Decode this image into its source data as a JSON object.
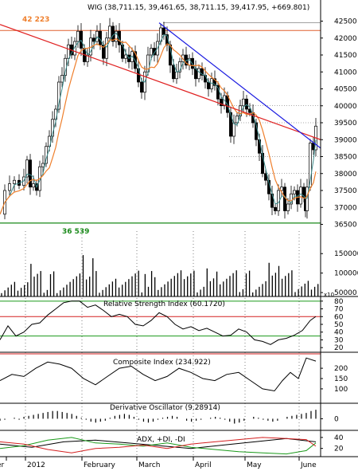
{
  "chart_data": [
    {
      "type": "candlestick",
      "title": "WIG (38,711.15, 39,461.65, 38,711.15, 39,417.95, +669.801)",
      "y_ticks": [
        36500,
        37000,
        37500,
        38000,
        38500,
        39000,
        39500,
        40000,
        40500,
        41000,
        41500,
        42000,
        42500
      ],
      "ylim": [
        36300,
        42700
      ],
      "annotations": [
        "42 223",
        "36 539"
      ],
      "reference_levels": [
        42223,
        36539,
        42450
      ],
      "close_path": [
        [
          0,
          36800
        ],
        [
          6,
          37500
        ],
        [
          12,
          37700
        ],
        [
          18,
          37800
        ],
        [
          24,
          37650
        ],
        [
          30,
          37900
        ],
        [
          34,
          38400
        ],
        [
          38,
          37600
        ],
        [
          42,
          37700
        ],
        [
          46,
          37500
        ],
        [
          50,
          38200
        ],
        [
          54,
          38300
        ],
        [
          58,
          38800
        ],
        [
          62,
          39100
        ],
        [
          66,
          39600
        ],
        [
          70,
          39900
        ],
        [
          74,
          40700
        ],
        [
          78,
          40900
        ],
        [
          82,
          41400
        ],
        [
          86,
          41800
        ],
        [
          90,
          41500
        ],
        [
          94,
          41900
        ],
        [
          98,
          42200
        ],
        [
          102,
          41700
        ],
        [
          106,
          41300
        ],
        [
          110,
          41500
        ],
        [
          114,
          42000
        ],
        [
          118,
          41900
        ],
        [
          122,
          42200
        ],
        [
          126,
          41800
        ],
        [
          130,
          41400
        ],
        [
          134,
          42000
        ],
        [
          138,
          42350
        ],
        [
          142,
          41900
        ],
        [
          146,
          42200
        ],
        [
          150,
          41800
        ],
        [
          154,
          41400
        ],
        [
          158,
          41500
        ],
        [
          162,
          41300
        ],
        [
          166,
          41600
        ],
        [
          170,
          41100
        ],
        [
          174,
          40700
        ],
        [
          178,
          40400
        ],
        [
          182,
          41000
        ],
        [
          186,
          41500
        ],
        [
          190,
          41700
        ],
        [
          194,
          41500
        ],
        [
          198,
          41900
        ],
        [
          202,
          42300
        ],
        [
          206,
          42100
        ],
        [
          210,
          41800
        ],
        [
          214,
          41200
        ],
        [
          218,
          40800
        ],
        [
          222,
          41000
        ],
        [
          226,
          41300
        ],
        [
          230,
          41500
        ],
        [
          234,
          41200
        ],
        [
          238,
          41400
        ],
        [
          242,
          41100
        ],
        [
          246,
          40800
        ],
        [
          250,
          41100
        ],
        [
          254,
          40900
        ],
        [
          258,
          40700
        ],
        [
          262,
          40500
        ],
        [
          266,
          40800
        ],
        [
          270,
          40600
        ],
        [
          274,
          40200
        ],
        [
          278,
          40000
        ],
        [
          282,
          40300
        ],
        [
          286,
          39800
        ],
        [
          290,
          39100
        ],
        [
          294,
          39500
        ],
        [
          298,
          39700
        ],
        [
          302,
          40000
        ],
        [
          306,
          40200
        ],
        [
          310,
          39900
        ],
        [
          314,
          39800
        ],
        [
          318,
          39500
        ],
        [
          322,
          39000
        ],
        [
          326,
          38600
        ],
        [
          330,
          38000
        ],
        [
          334,
          37800
        ],
        [
          338,
          37400
        ],
        [
          342,
          37000
        ],
        [
          346,
          36900
        ],
        [
          350,
          37500
        ],
        [
          354,
          37600
        ],
        [
          358,
          36900
        ],
        [
          362,
          37100
        ],
        [
          366,
          37400
        ],
        [
          370,
          37500
        ],
        [
          374,
          37100
        ],
        [
          378,
          37600
        ],
        [
          382,
          37300
        ],
        [
          384,
          36900
        ],
        [
          386,
          37600
        ],
        [
          390,
          38900
        ],
        [
          394,
          38700
        ],
        [
          397,
          39400
        ]
      ]
    },
    {
      "type": "bar",
      "title": "Volume",
      "y_ticks": [
        50000,
        100000,
        150000
      ],
      "y_tick_labels": [
        "50000",
        "100000",
        "150000"
      ],
      "ylim": [
        40000,
        175000
      ],
      "unit": "x10"
    },
    {
      "type": "line",
      "title": "Relative Strength Index (60.1720)",
      "y_ticks": [
        20,
        30,
        40,
        50,
        60,
        70,
        80
      ],
      "ylim": [
        14,
        86
      ],
      "reference_levels": [
        35,
        60,
        80
      ],
      "series": [
        {
          "values": [
            [
              0,
              30
            ],
            [
              10,
              48
            ],
            [
              20,
              35
            ],
            [
              30,
              40
            ],
            [
              40,
              50
            ],
            [
              50,
              52
            ],
            [
              60,
              62
            ],
            [
              70,
              70
            ],
            [
              80,
              78
            ],
            [
              90,
              80
            ],
            [
              100,
              80
            ],
            [
              110,
              72
            ],
            [
              120,
              75
            ],
            [
              130,
              68
            ],
            [
              140,
              60
            ],
            [
              150,
              63
            ],
            [
              160,
              60
            ],
            [
              170,
              50
            ],
            [
              180,
              48
            ],
            [
              190,
              55
            ],
            [
              200,
              65
            ],
            [
              210,
              60
            ],
            [
              220,
              50
            ],
            [
              230,
              44
            ],
            [
              240,
              47
            ],
            [
              250,
              42
            ],
            [
              260,
              45
            ],
            [
              270,
              40
            ],
            [
              280,
              35
            ],
            [
              290,
              36
            ],
            [
              300,
              44
            ],
            [
              310,
              40
            ],
            [
              320,
              30
            ],
            [
              330,
              28
            ],
            [
              340,
              24
            ],
            [
              350,
              30
            ],
            [
              360,
              32
            ],
            [
              370,
              36
            ],
            [
              380,
              42
            ],
            [
              390,
              55
            ],
            [
              397,
              60.17
            ]
          ]
        }
      ]
    },
    {
      "type": "line",
      "title": "Composite Index (234.922)",
      "y_ticks": [
        100,
        150,
        200
      ],
      "ylim": [
        30,
        270
      ],
      "series": [
        {
          "values": [
            [
              0,
              140
            ],
            [
              15,
              170
            ],
            [
              30,
              160
            ],
            [
              45,
              200
            ],
            [
              60,
              230
            ],
            [
              75,
              220
            ],
            [
              90,
              200
            ],
            [
              105,
              150
            ],
            [
              120,
              120
            ],
            [
              135,
              160
            ],
            [
              150,
              200
            ],
            [
              165,
              210
            ],
            [
              180,
              170
            ],
            [
              195,
              140
            ],
            [
              210,
              160
            ],
            [
              225,
              200
            ],
            [
              240,
              180
            ],
            [
              255,
              150
            ],
            [
              270,
              140
            ],
            [
              285,
              170
            ],
            [
              300,
              180
            ],
            [
              315,
              140
            ],
            [
              330,
              100
            ],
            [
              345,
              90
            ],
            [
              355,
              140
            ],
            [
              365,
              180
            ],
            [
              375,
              150
            ],
            [
              385,
              250
            ],
            [
              397,
              234.9
            ]
          ]
        }
      ]
    },
    {
      "type": "bar",
      "title": "Derivative Oscillator (9.28914)",
      "y_ticks": [
        0
      ],
      "ylim": [
        -12,
        16
      ],
      "values": [
        -2,
        -1,
        0,
        1,
        -1,
        2,
        3,
        4,
        5,
        6,
        7,
        8,
        8,
        7,
        6,
        5,
        3,
        1,
        -1,
        -3,
        -4,
        -3,
        -2,
        1,
        3,
        4,
        5,
        4,
        2,
        -1,
        -3,
        -4,
        -3,
        -1,
        1,
        2,
        3,
        2,
        0,
        -2,
        -3,
        -2,
        -1,
        0,
        1,
        2,
        1,
        -1,
        -3,
        -5,
        -4,
        -2,
        0,
        2,
        1,
        -1,
        -2,
        -3,
        -2,
        0,
        2,
        3,
        4,
        5,
        6,
        8,
        9.29
      ]
    },
    {
      "type": "line",
      "title": "ADX, +DI, -DI",
      "y_ticks": [
        20,
        40
      ],
      "ylim": [
        5,
        50
      ],
      "series": [
        {
          "color": "#000000",
          "values": [
            [
              0,
              28
            ],
            [
              40,
              22
            ],
            [
              80,
              32
            ],
            [
              120,
              35
            ],
            [
              160,
              30
            ],
            [
              200,
              25
            ],
            [
              240,
              20
            ],
            [
              280,
              26
            ],
            [
              320,
              32
            ],
            [
              360,
              38
            ],
            [
              397,
              32
            ]
          ]
        },
        {
          "color": "#1a9a1a",
          "values": [
            [
              0,
              20
            ],
            [
              30,
              25
            ],
            [
              60,
              35
            ],
            [
              90,
              40
            ],
            [
              120,
              30
            ],
            [
              150,
              28
            ],
            [
              180,
              24
            ],
            [
              210,
              30
            ],
            [
              240,
              22
            ],
            [
              270,
              18
            ],
            [
              300,
              14
            ],
            [
              330,
              12
            ],
            [
              360,
              10
            ],
            [
              385,
              16
            ],
            [
              397,
              30
            ]
          ]
        },
        {
          "color": "#d42020",
          "values": [
            [
              0,
              32
            ],
            [
              30,
              28
            ],
            [
              60,
              18
            ],
            [
              90,
              12
            ],
            [
              120,
              20
            ],
            [
              150,
              22
            ],
            [
              180,
              26
            ],
            [
              210,
              20
            ],
            [
              240,
              28
            ],
            [
              270,
              32
            ],
            [
              300,
              36
            ],
            [
              330,
              40
            ],
            [
              360,
              38
            ],
            [
              385,
              36
            ],
            [
              397,
              24
            ]
          ]
        }
      ]
    }
  ],
  "x_axis": {
    "labels": [
      "er",
      "2012",
      "February",
      "March",
      "April",
      "May",
      "June"
    ]
  },
  "colors": {
    "price": "#000000",
    "fast_ma": "#3a8a8a",
    "slow_ma": "#ef7f2c",
    "trendline_red": "#e02020",
    "trendline_blue": "#1a1ae0",
    "support": "#1a8a1a",
    "resistance": "#e06030",
    "rsi_low": "#1a9a1a",
    "rsi_mid": "#d42020"
  }
}
